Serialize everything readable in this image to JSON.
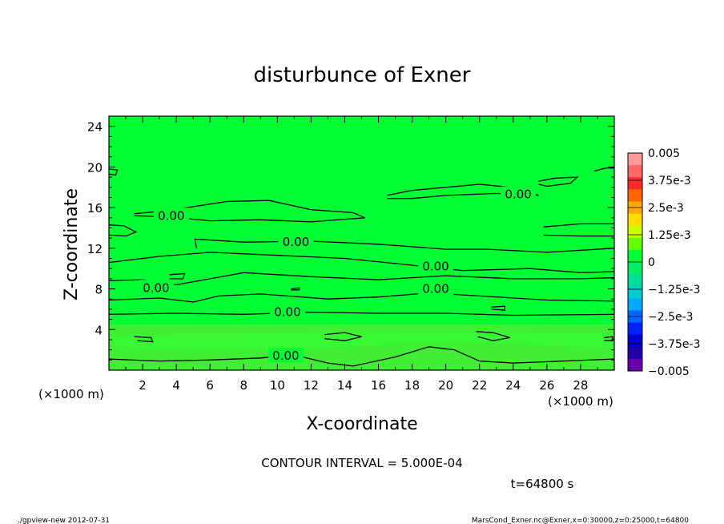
{
  "title": "disturbunce of Exner",
  "chart_data": {
    "type": "contour",
    "title": "disturbunce of Exner",
    "xlabel": "X-coordinate",
    "ylabel": "Z-coordinate",
    "x_unit": "(×1000 m)",
    "y_unit": "(×1000 m)",
    "xlim": [
      0,
      30
    ],
    "ylim": [
      0,
      25
    ],
    "x_ticks": [
      2,
      4,
      6,
      8,
      10,
      12,
      14,
      16,
      18,
      20,
      22,
      24,
      26,
      28
    ],
    "y_ticks": [
      4,
      8,
      12,
      16,
      20,
      24
    ],
    "x_tick_labels": [
      "2",
      "4",
      "6",
      "8",
      "10",
      "12",
      "14",
      "16",
      "18",
      "20",
      "22",
      "24",
      "26",
      "28"
    ],
    "y_tick_labels": [
      "4",
      "8",
      "12",
      "16",
      "20",
      "24"
    ],
    "contour_interval_text": "CONTOUR INTERVAL = 5.000E-04",
    "contour_labels": [
      {
        "text": "0.00",
        "x": 3.7,
        "z": 15.2
      },
      {
        "text": "0.00",
        "x": 11.1,
        "z": 12.6
      },
      {
        "text": "0.00",
        "x": 24.3,
        "z": 17.3
      },
      {
        "text": "0.00",
        "x": 19.4,
        "z": 10.2
      },
      {
        "text": "0.00",
        "x": 19.4,
        "z": 8.0
      },
      {
        "text": "0.00",
        "x": 2.8,
        "z": 8.1
      },
      {
        "text": "0.00",
        "x": 10.6,
        "z": 5.7
      },
      {
        "text": "0.00",
        "x": 10.5,
        "z": 1.4
      }
    ],
    "colorbar": {
      "labels": [
        "0.005",
        "3.75e-3",
        "2.5e-3",
        "1.25e-3",
        "0",
        "−1.25e-3",
        "−2.5e-3",
        "−3.75e-3",
        "−0.005"
      ],
      "min": -0.005,
      "max": 0.005,
      "colors": [
        "#ff9a9a",
        "#ff6868",
        "#ff2a2a",
        "#ff6600",
        "#ffaa00",
        "#ffdd00",
        "#ccff00",
        "#66ff00",
        "#00ff33",
        "#00ee66",
        "#00dd99",
        "#00cccc",
        "#00aaff",
        "#0066ff",
        "#0022ff",
        "#0000cc",
        "#2200aa",
        "#6600aa"
      ]
    },
    "field_colors": {
      "main": "#00ff33",
      "lower": "#40ee33",
      "band": "#33ff33"
    }
  },
  "time_label": "t=64800 s",
  "footer_left": "./gpview-new   2012-07-31",
  "footer_right": "MarsCond_Exner.nc@Exner,x=0:30000,z=0:25000,t=64800"
}
